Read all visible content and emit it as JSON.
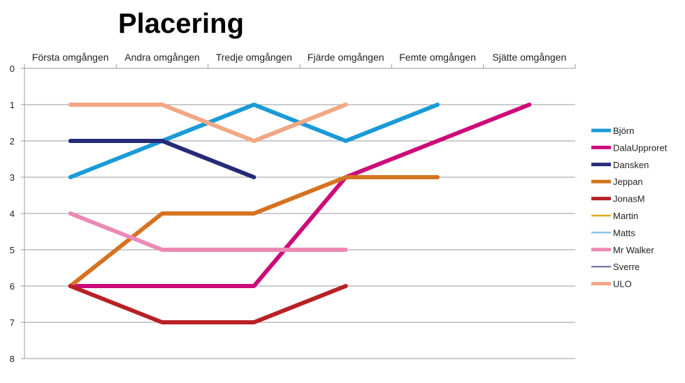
{
  "chart_data": {
    "type": "line",
    "title": "Placering",
    "xlabel": "",
    "ylabel": "",
    "categories": [
      "Första omgången",
      "Andra omgången",
      "Tredje omgången",
      "Fjärde omgången",
      "Femte omgången",
      "Sjätte omgången"
    ],
    "ylim": [
      0,
      8
    ],
    "y_reversed": true,
    "yticks": [
      "0",
      "1",
      "2",
      "3",
      "4",
      "5",
      "6",
      "7",
      "8"
    ],
    "grid": true,
    "legend": "right",
    "series": [
      {
        "name": "Björn",
        "color": "#1a9bd7",
        "values": [
          3,
          2,
          1,
          2,
          1,
          null
        ]
      },
      {
        "name": "DalaUpproret",
        "color": "#cc0a7a",
        "values": [
          6,
          6,
          6,
          3,
          2,
          1
        ]
      },
      {
        "name": "Dansken",
        "color": "#252a78",
        "values": [
          2,
          2,
          3,
          null,
          null,
          null
        ]
      },
      {
        "name": "Jeppan",
        "color": "#d57320",
        "values": [
          6,
          4,
          4,
          3,
          3,
          null
        ]
      },
      {
        "name": "JonasM",
        "color": "#b72125",
        "values": [
          6,
          7,
          7,
          6,
          null,
          null
        ]
      },
      {
        "name": "Martin",
        "color": "#d9ad1f",
        "values": [
          null,
          null,
          null,
          null,
          null,
          null
        ]
      },
      {
        "name": "Matts",
        "color": "#8cc4e8",
        "values": [
          null,
          null,
          null,
          null,
          null,
          null
        ]
      },
      {
        "name": "Mr Walker",
        "color": "#ec89b5",
        "values": [
          4,
          5,
          5,
          5,
          null,
          null
        ]
      },
      {
        "name": "Sverre",
        "color": "#7b7fa8",
        "values": [
          null,
          null,
          null,
          null,
          null,
          null
        ]
      },
      {
        "name": "ULO",
        "color": "#f1a783",
        "values": [
          1,
          1,
          2,
          1,
          null,
          null
        ]
      }
    ]
  }
}
